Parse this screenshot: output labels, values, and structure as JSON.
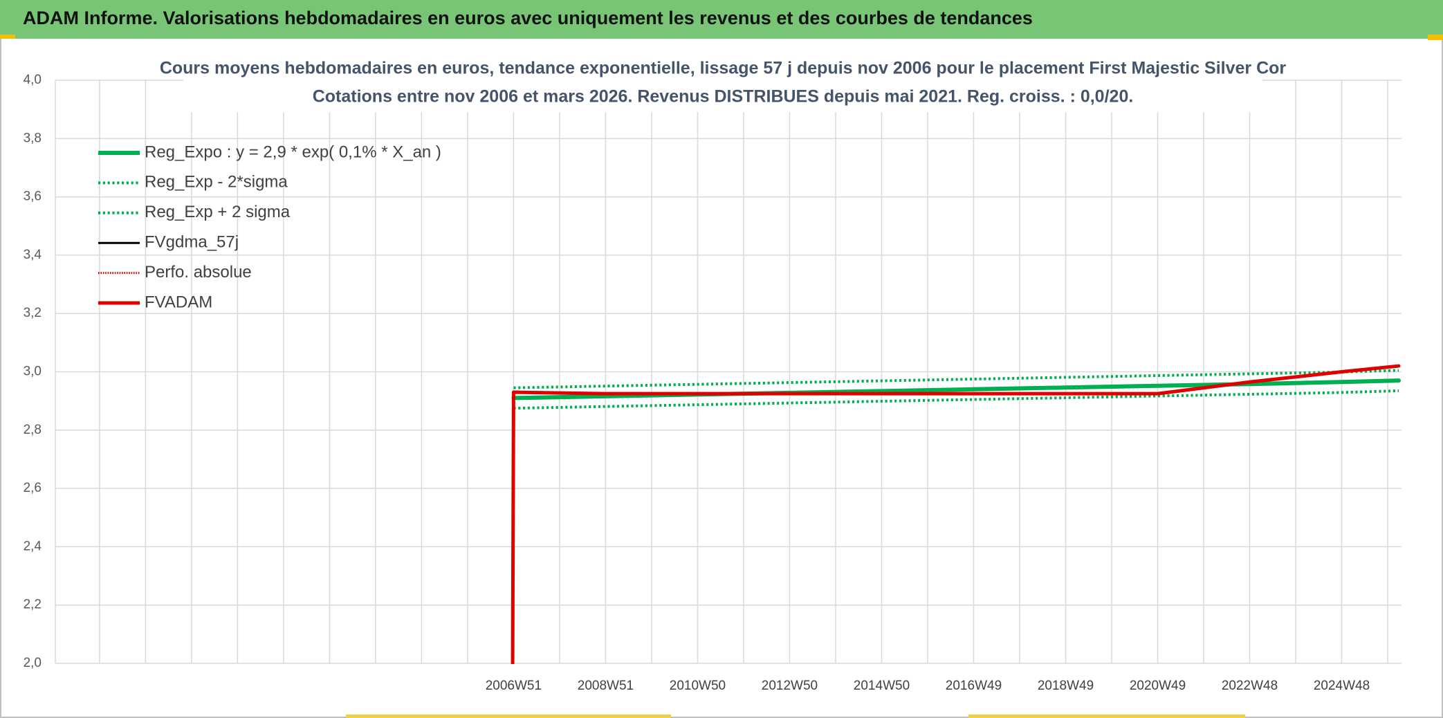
{
  "header": {
    "title": "ADAM Informe. Valorisations hebdomadaires en euros avec uniquement les revenus et des courbes de tendances"
  },
  "chart_data": {
    "type": "line",
    "title": "Cours moyens hebdomadaires en euros, tendance exponentielle, lissage 57 j depuis nov 2006 pour le placement First Majestic Silver Cor",
    "subtitle": "Cotations entre nov 2006 et mars 2026. Revenus DISTRIBUES depuis mai 2021. Reg. croiss. : 0,0/20.",
    "x": [
      2006.94,
      2006.96,
      2008.96,
      2010.96,
      2012.96,
      2014.96,
      2016.96,
      2018.96,
      2020.96,
      2022.96,
      2024.96,
      2026.2
    ],
    "xlim": [
      1997.0,
      2026.26
    ],
    "xticks": [
      {
        "value": 1997.96,
        "label": null
      },
      {
        "value": 1998.96,
        "label": null
      },
      {
        "value": 1999.96,
        "label": null
      },
      {
        "value": 2000.96,
        "label": null
      },
      {
        "value": 2001.96,
        "label": null
      },
      {
        "value": 2002.96,
        "label": null
      },
      {
        "value": 2003.96,
        "label": null
      },
      {
        "value": 2004.96,
        "label": null
      },
      {
        "value": 2005.96,
        "label": null
      },
      {
        "value": 2006.96,
        "label": "2006W51"
      },
      {
        "value": 2007.96,
        "label": null
      },
      {
        "value": 2008.96,
        "label": "2008W51"
      },
      {
        "value": 2009.96,
        "label": null
      },
      {
        "value": 2010.96,
        "label": "2010W50"
      },
      {
        "value": 2011.96,
        "label": null
      },
      {
        "value": 2012.96,
        "label": "2012W50"
      },
      {
        "value": 2013.96,
        "label": null
      },
      {
        "value": 2014.96,
        "label": "2014W50"
      },
      {
        "value": 2015.96,
        "label": null
      },
      {
        "value": 2016.96,
        "label": "2016W49"
      },
      {
        "value": 2017.96,
        "label": null
      },
      {
        "value": 2018.96,
        "label": "2018W49"
      },
      {
        "value": 2019.96,
        "label": null
      },
      {
        "value": 2020.96,
        "label": "2020W49"
      },
      {
        "value": 2021.96,
        "label": null
      },
      {
        "value": 2022.96,
        "label": "2022W48"
      },
      {
        "value": 2023.96,
        "label": null
      },
      {
        "value": 2024.96,
        "label": "2024W48"
      },
      {
        "value": 2025.96,
        "label": null
      }
    ],
    "ylim": [
      2.0,
      4.0
    ],
    "yticks": [
      {
        "value": 2.0,
        "label": "2,0"
      },
      {
        "value": 2.2,
        "label": "2,2"
      },
      {
        "value": 2.4,
        "label": "2,4"
      },
      {
        "value": 2.6,
        "label": "2,6"
      },
      {
        "value": 2.8,
        "label": "2,8"
      },
      {
        "value": 3.0,
        "label": "3,0"
      },
      {
        "value": 3.2,
        "label": "3,2"
      },
      {
        "value": 3.4,
        "label": "3,4"
      },
      {
        "value": 3.6,
        "label": "3,6"
      },
      {
        "value": 3.8,
        "label": "3,8"
      },
      {
        "value": 4.0,
        "label": "4,0"
      }
    ],
    "grid": true,
    "legend": "top-left",
    "series": [
      {
        "name": "Reg_Expo : y = 2,9 * exp( 0,1% *  X_an )",
        "color": "#00b050",
        "style": "solid",
        "width": 6,
        "values": [
          null,
          2.91,
          2.916,
          2.922,
          2.928,
          2.934,
          2.94,
          2.946,
          2.952,
          2.958,
          2.965,
          2.97
        ]
      },
      {
        "name": "Reg_Exp - 2*sigma",
        "color": "#00b050",
        "style": "dotted",
        "width": 4,
        "values": [
          null,
          2.875,
          2.881,
          2.887,
          2.893,
          2.899,
          2.905,
          2.911,
          2.917,
          2.923,
          2.929,
          2.935
        ]
      },
      {
        "name": "Reg_Exp + 2 sigma",
        "color": "#00b050",
        "style": "dotted",
        "width": 4,
        "values": [
          null,
          2.945,
          2.951,
          2.957,
          2.963,
          2.969,
          2.975,
          2.981,
          2.987,
          2.993,
          2.999,
          3.005
        ]
      },
      {
        "name": "FVgdma_57j",
        "color": "#000000",
        "style": "solid",
        "width": 3,
        "values": [
          2.0,
          2.93,
          2.925,
          2.925,
          2.925,
          2.925,
          2.925,
          2.925,
          2.925,
          2.965,
          3.0,
          3.02
        ]
      },
      {
        "name": "Perfo. absolue",
        "color": "#e00000",
        "style": "dotted",
        "width": 2,
        "values": [
          2.0,
          2.93,
          2.925,
          2.925,
          2.925,
          2.925,
          2.925,
          2.925,
          2.925,
          2.965,
          3.0,
          3.02
        ]
      },
      {
        "name": "FVADAM",
        "color": "#e00000",
        "style": "solid",
        "width": 5,
        "values": [
          2.0,
          2.93,
          2.925,
          2.925,
          2.925,
          2.925,
          2.925,
          2.925,
          2.925,
          2.965,
          3.0,
          3.02
        ]
      }
    ]
  }
}
